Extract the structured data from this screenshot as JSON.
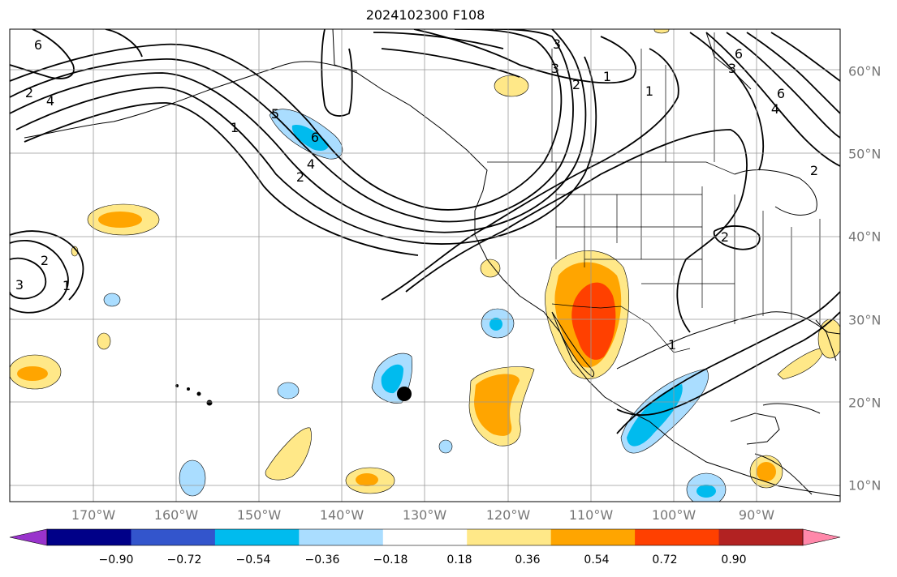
{
  "title": "2024102300 F108",
  "lon_ticks": [
    "170°W",
    "160°W",
    "150°W",
    "140°W",
    "130°W",
    "120°W",
    "110°W",
    "100°W",
    "90°W"
  ],
  "lat_ticks": [
    "60°N",
    "50°N",
    "40°N",
    "30°N",
    "20°N",
    "10°N"
  ],
  "colorbar": {
    "labels": [
      "−0.90",
      "−0.72",
      "−0.54",
      "−0.36",
      "−0.18",
      "0.18",
      "0.36",
      "0.54",
      "0.72",
      "0.90"
    ],
    "colors": [
      "#9933cc",
      "#000088",
      "#3355cc",
      "#00bbee",
      "#aaddff",
      "#ffffff",
      "#ffe888",
      "#ffa500",
      "#ff4000",
      "#b22222",
      "#ff88aa"
    ]
  },
  "contour_labels": [
    "6",
    "4",
    "3",
    "2",
    "1",
    "1",
    "2",
    "4",
    "6",
    "3",
    "2",
    "1",
    "2",
    "3",
    "6",
    "6",
    "4",
    "5",
    "2",
    "3",
    "2",
    "1",
    "1"
  ],
  "colors": {
    "grid": "#999999",
    "coast": "#000000",
    "label": "#777777"
  }
}
